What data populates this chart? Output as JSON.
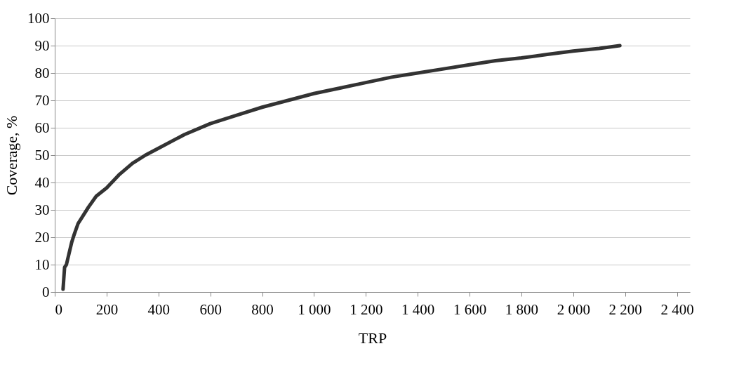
{
  "chart_data": {
    "type": "line",
    "xlabel": "TRP",
    "ylabel": "Coverage, %",
    "x": [
      32,
      35,
      38,
      45,
      55,
      65,
      75,
      90,
      110,
      130,
      160,
      200,
      250,
      300,
      350,
      400,
      500,
      600,
      700,
      800,
      900,
      1000,
      1100,
      1200,
      1300,
      1400,
      1500,
      1600,
      1700,
      1800,
      1900,
      2000,
      2100,
      2180
    ],
    "series": [
      {
        "color": "#333333",
        "values": [
          1,
          5,
          9,
          10,
          14,
          18,
          21,
          25,
          28,
          31,
          35,
          38,
          43,
          47,
          50,
          52.5,
          57.5,
          61.5,
          64.5,
          67.5,
          70,
          72.5,
          74.5,
          76.5,
          78.5,
          80,
          81.5,
          83,
          84.5,
          85.5,
          86.8,
          88,
          89,
          90
        ]
      }
    ],
    "xlim": [
      0,
      2450
    ],
    "ylim": [
      0,
      100
    ],
    "xticks": [
      0,
      200,
      400,
      600,
      800,
      {
        "value": 1000,
        "label": "1 000"
      },
      {
        "value": 1200,
        "label": "1 200"
      },
      {
        "value": 1400,
        "label": "1 400"
      },
      {
        "value": 1600,
        "label": "1 600"
      },
      {
        "value": 1800,
        "label": "1 800"
      },
      {
        "value": 2000,
        "label": "2 000"
      },
      {
        "value": 2200,
        "label": "2 200"
      },
      {
        "value": 2400,
        "label": "2 400"
      }
    ],
    "yticks": [
      0,
      10,
      20,
      30,
      40,
      50,
      60,
      70,
      80,
      90,
      100
    ],
    "grid": "y",
    "marker": "none",
    "line_style": "solid"
  }
}
